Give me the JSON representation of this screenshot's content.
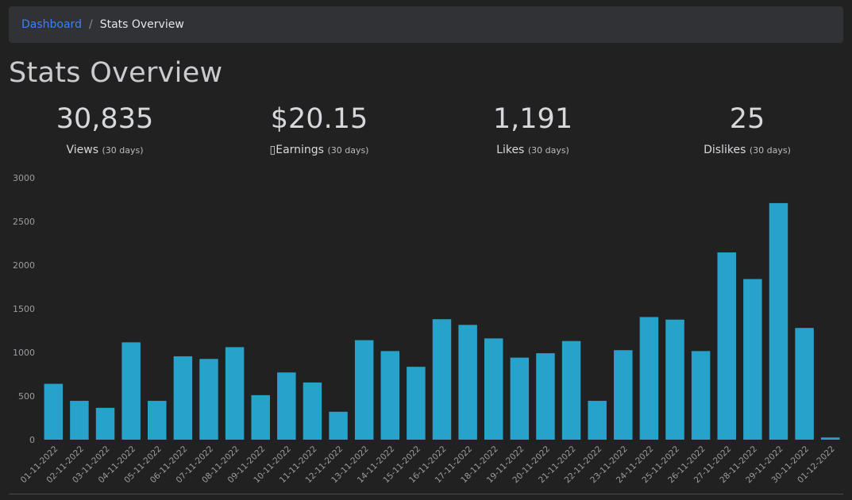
{
  "breadcrumb": {
    "home": "Dashboard",
    "separator": "/",
    "current": "Stats Overview"
  },
  "page_title": "Stats Overview",
  "stats": [
    {
      "value": "30,835",
      "label": "Views",
      "period": "(30 days)"
    },
    {
      "value": "$20.15",
      "label": "▯Earnings",
      "period": "(30 days)"
    },
    {
      "value": "1,191",
      "label": "Likes",
      "period": "(30 days)"
    },
    {
      "value": "25",
      "label": "Dislikes",
      "period": "(30 days)"
    }
  ],
  "colors": {
    "bar": "#27a3cb",
    "link": "#3b82f6",
    "background": "#212121"
  },
  "chart_data": {
    "type": "bar",
    "categories": [
      "01-11-2022",
      "02-11-2022",
      "03-11-2022",
      "04-11-2022",
      "05-11-2022",
      "06-11-2022",
      "07-11-2022",
      "08-11-2022",
      "09-11-2022",
      "10-11-2022",
      "11-11-2022",
      "12-11-2022",
      "13-11-2022",
      "14-11-2022",
      "15-11-2022",
      "16-11-2022",
      "17-11-2022",
      "18-11-2022",
      "19-11-2022",
      "20-11-2022",
      "21-11-2022",
      "22-11-2022",
      "23-11-2022",
      "24-11-2022",
      "25-11-2022",
      "26-11-2022",
      "27-11-2022",
      "28-11-2022",
      "29-11-2022",
      "30-11-2022",
      "01-12-2022"
    ],
    "values": [
      640,
      445,
      365,
      1115,
      445,
      955,
      925,
      1060,
      510,
      770,
      655,
      320,
      1140,
      1015,
      835,
      1380,
      1315,
      1160,
      940,
      990,
      1130,
      445,
      1025,
      1405,
      1375,
      1015,
      2145,
      1840,
      2710,
      1280,
      25
    ],
    "yticks": [
      0,
      500,
      1000,
      1500,
      2000,
      2500,
      3000
    ],
    "ylim": [
      0,
      3000
    ],
    "grid": false,
    "legend": "none"
  }
}
